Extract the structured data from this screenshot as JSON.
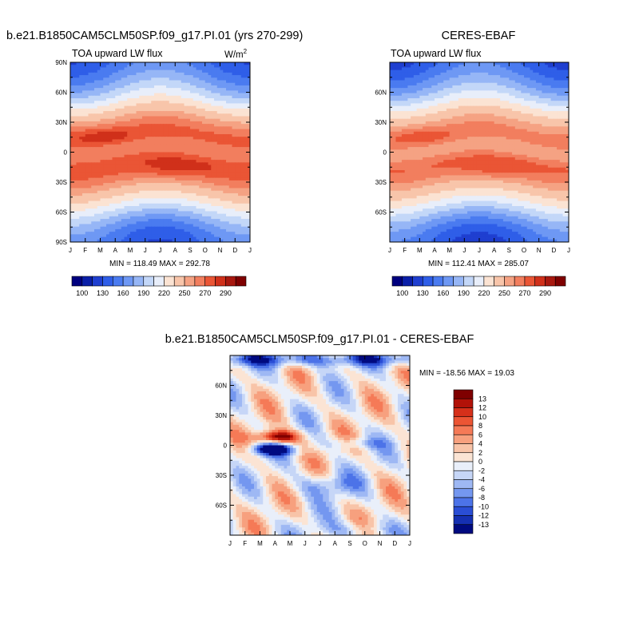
{
  "figure": {
    "panel_a_title": "b.e21.B1850CAM5CLM50SP.f09_g17.PI.01 (yrs 270-299)",
    "panel_b_title": "CERES-EBAF",
    "panel_c_title": "b.e21.B1850CAM5CLM50SP.f09_g17.PI.01 - CERES-EBAF"
  },
  "chart_data": [
    {
      "type": "heatmap",
      "name": "model",
      "title": "b.e21.B1850CAM5CLM50SP.f09_g17.PI.01 (yrs 270-299)",
      "subtitle": "TOA upward LW flux",
      "units": "W/m",
      "units_superscript": "2",
      "x_categories": [
        "J",
        "F",
        "M",
        "A",
        "M",
        "J",
        "J",
        "A",
        "S",
        "O",
        "N",
        "D",
        "J"
      ],
      "y_ticks": [
        "90N",
        "60N",
        "30N",
        "0",
        "30S",
        "60S",
        "90S"
      ],
      "y_tick_values": [
        90,
        60,
        30,
        0,
        -30,
        -60,
        -90
      ],
      "ylim": [
        -90,
        90
      ],
      "stats": "MIN = 118.49 MAX = 292.78",
      "min": 118.49,
      "max": 292.78,
      "colorbar": {
        "labels": [
          "100",
          "130",
          "160",
          "190",
          "220",
          "250",
          "270",
          "290"
        ],
        "levels": [
          100,
          115,
          130,
          145,
          160,
          175,
          190,
          205,
          220,
          235,
          250,
          260,
          270,
          280,
          290
        ],
        "colors": [
          "#00007f",
          "#0a1fa8",
          "#1f3fd0",
          "#2f5ee8",
          "#4a7bf0",
          "#6e98f4",
          "#96b6f6",
          "#c3d7f8",
          "#e8eefa",
          "#fbe3d3",
          "#f8c5aa",
          "#f5a283",
          "#f27e5e",
          "#ea5535",
          "#d0301a",
          "#a8180f",
          "#7f0000"
        ]
      }
    },
    {
      "type": "heatmap",
      "name": "ceres",
      "title": "CERES-EBAF",
      "subtitle": "TOA upward LW flux",
      "x_categories": [
        "J",
        "F",
        "M",
        "A",
        "M",
        "J",
        "J",
        "A",
        "S",
        "O",
        "N",
        "D",
        "J"
      ],
      "y_ticks": [
        "60N",
        "30N",
        "0",
        "30S",
        "60S"
      ],
      "y_tick_values": [
        60,
        30,
        0,
        -30,
        -60
      ],
      "ylim": [
        -90,
        90
      ],
      "stats": "MIN = 112.41 MAX = 285.07",
      "min": 112.41,
      "max": 285.07,
      "colorbar": {
        "labels": [
          "100",
          "130",
          "160",
          "190",
          "220",
          "250",
          "270",
          "290"
        ],
        "levels": [
          100,
          115,
          130,
          145,
          160,
          175,
          190,
          205,
          220,
          235,
          250,
          260,
          270,
          280,
          290
        ]
      }
    },
    {
      "type": "heatmap",
      "name": "difference",
      "title": "b.e21.B1850CAM5CLM50SP.f09_g17.PI.01 - CERES-EBAF",
      "x_categories": [
        "J",
        "F",
        "M",
        "A",
        "M",
        "J",
        "J",
        "A",
        "S",
        "O",
        "N",
        "D",
        "J"
      ],
      "y_ticks": [
        "60N",
        "30N",
        "0",
        "30S",
        "60S"
      ],
      "y_tick_values": [
        60,
        30,
        0,
        -30,
        -60
      ],
      "ylim": [
        -90,
        90
      ],
      "stats": "MIN = -18.56 MAX =  19.03",
      "min": -18.56,
      "max": 19.03,
      "colorbar": {
        "labels": [
          "13",
          "12",
          "10",
          "8",
          "6",
          "4",
          "2",
          "0",
          "-2",
          "-4",
          "-6",
          "-8",
          "-10",
          "-12",
          "-13"
        ],
        "colors": [
          "#7f0000",
          "#b21208",
          "#d6301a",
          "#ec5534",
          "#f57a57",
          "#f7a07e",
          "#f8c4a8",
          "#fbe4d4",
          "#e9effa",
          "#c6d6f7",
          "#9eb8f4",
          "#7497f0",
          "#4c73e8",
          "#2a4ed5",
          "#1530b2",
          "#000a80"
        ]
      }
    }
  ]
}
